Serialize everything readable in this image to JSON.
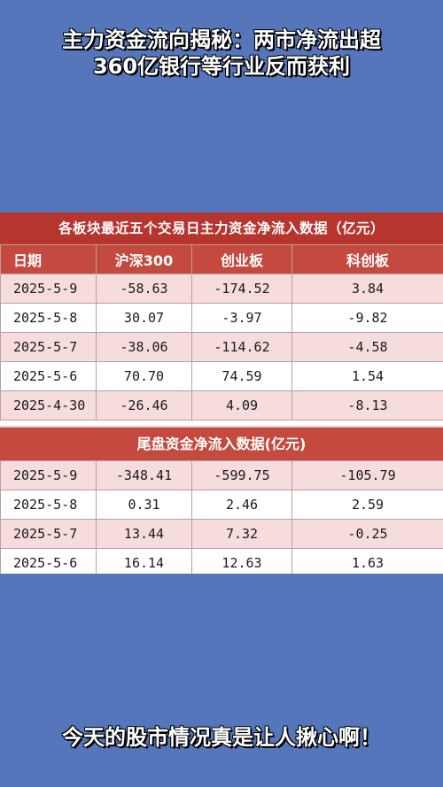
{
  "headline": {
    "line1": "主力资金流向揭秘：两市净流出超",
    "line2": "360亿银行等行业反而获利"
  },
  "table1": {
    "title": "各板块最近五个交易日主力资金净流入数据（亿元）",
    "columns": [
      "日期",
      "沪深300",
      "创业板",
      "科创板"
    ],
    "rows": [
      [
        "2025-5-9",
        "-58.63",
        "-174.52",
        "3.84"
      ],
      [
        "2025-5-8",
        "30.07",
        "-3.97",
        "-9.82"
      ],
      [
        "2025-5-7",
        "-38.06",
        "-114.62",
        "-4.58"
      ],
      [
        "2025-5-6",
        "70.70",
        "74.59",
        "1.54"
      ],
      [
        "2025-4-30",
        "-26.46",
        "4.09",
        "-8.13"
      ]
    ]
  },
  "table2": {
    "title": "尾盘资金净流入数据(亿元)",
    "rows": [
      [
        "2025-5-9",
        "-348.41",
        "-599.75",
        "-105.79"
      ],
      [
        "2025-5-8",
        "0.31",
        "2.46",
        "2.59"
      ],
      [
        "2025-5-7",
        "13.44",
        "7.32",
        "-0.25"
      ],
      [
        "2025-5-6",
        "16.14",
        "12.63",
        "1.63"
      ]
    ]
  },
  "caption": "今天的股市情况真是让人揪心啊！"
}
